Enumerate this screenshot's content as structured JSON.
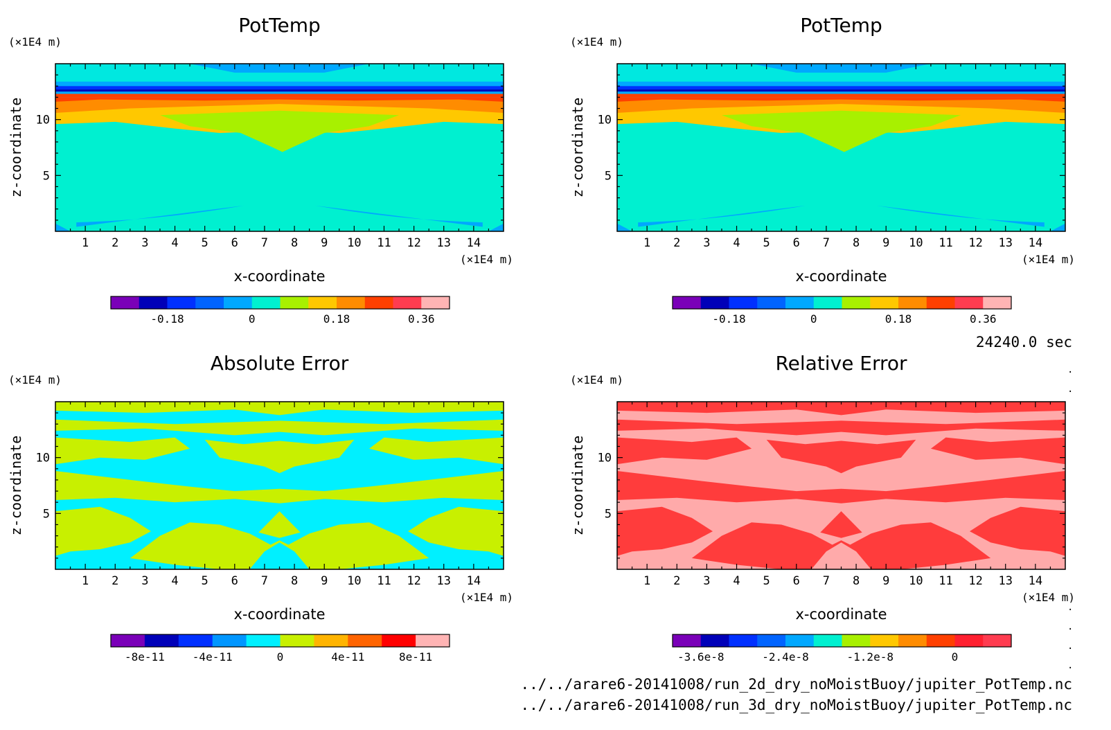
{
  "figure": {
    "time_label": "24240.0 sec",
    "files": [
      "../../arare6-20141008/run_2d_dry_noMoistBuoy/jupiter_PotTemp.nc",
      "../../arare6-20141008/run_3d_dry_noMoistBuoy/jupiter_PotTemp.nc"
    ]
  },
  "chart_data": [
    {
      "type": "heatmap",
      "title": "PotTemp",
      "xlabel": "x-coordinate",
      "ylabel": "z-coordinate",
      "x_unit": "(×1E4 m)",
      "y_unit": "(×1E4 m)",
      "xlim": [
        0,
        15
      ],
      "ylim": [
        0,
        15
      ],
      "xticks": [
        "1",
        "2",
        "3",
        "4",
        "5",
        "6",
        "7",
        "8",
        "9",
        "10",
        "11",
        "12",
        "13",
        "14"
      ],
      "yticks": [
        "5",
        "10"
      ],
      "colorbar": {
        "colors": [
          "#7a00b8",
          "#0000b8",
          "#0030ff",
          "#0064ff",
          "#00a8ff",
          "#00f0d0",
          "#a8f000",
          "#ffc800",
          "#ff8c00",
          "#ff4000",
          "#ff3c50",
          "#ffb4b4"
        ],
        "tick_labels": [
          "-0.18",
          "0",
          "0.18",
          "0.36"
        ],
        "tick_index": [
          2,
          5,
          8,
          11
        ]
      },
      "pattern": "potential"
    },
    {
      "type": "heatmap",
      "title": "PotTemp",
      "xlabel": "x-coordinate",
      "ylabel": "z-coordinate",
      "x_unit": "(×1E4 m)",
      "y_unit": "(×1E4 m)",
      "xlim": [
        0,
        15
      ],
      "ylim": [
        0,
        15
      ],
      "xticks": [
        "1",
        "2",
        "3",
        "4",
        "5",
        "6",
        "7",
        "8",
        "9",
        "10",
        "11",
        "12",
        "13",
        "14"
      ],
      "yticks": [
        "5",
        "10"
      ],
      "colorbar": {
        "colors": [
          "#7a00b8",
          "#0000b8",
          "#0030ff",
          "#0064ff",
          "#00a8ff",
          "#00f0d0",
          "#a8f000",
          "#ffc800",
          "#ff8c00",
          "#ff4000",
          "#ff3c50",
          "#ffb4b4"
        ],
        "tick_labels": [
          "-0.18",
          "0",
          "0.18",
          "0.36"
        ],
        "tick_index": [
          2,
          5,
          8,
          11
        ]
      },
      "pattern": "potential"
    },
    {
      "type": "heatmap",
      "title": "Absolute Error",
      "xlabel": "x-coordinate",
      "ylabel": "z-coordinate",
      "x_unit": "(×1E4 m)",
      "y_unit": "(×1E4 m)",
      "xlim": [
        0,
        15
      ],
      "ylim": [
        0,
        15
      ],
      "xticks": [
        "1",
        "2",
        "3",
        "4",
        "5",
        "6",
        "7",
        "8",
        "9",
        "10",
        "11",
        "12",
        "13",
        "14"
      ],
      "yticks": [
        "5",
        "10"
      ],
      "colorbar": {
        "colors": [
          "#7a00b8",
          "#0000b8",
          "#0030ff",
          "#0096ff",
          "#00f0ff",
          "#c8f000",
          "#ffb400",
          "#ff6400",
          "#ff0000",
          "#ffb4b4"
        ],
        "tick_labels": [
          "-8e-11",
          "-4e-11",
          "0",
          "4e-11",
          "8e-11"
        ],
        "tick_index": [
          1,
          3,
          5,
          7,
          9
        ]
      },
      "pattern": "abs",
      "fill_colors": [
        "#00f0ff",
        "#c8f000"
      ]
    },
    {
      "type": "heatmap",
      "title": "Relative Error",
      "xlabel": "x-coordinate",
      "ylabel": "z-coordinate",
      "x_unit": "(×1E4 m)",
      "y_unit": "(×1E4 m)",
      "xlim": [
        0,
        15
      ],
      "ylim": [
        0,
        15
      ],
      "xticks": [
        "1",
        "2",
        "3",
        "4",
        "5",
        "6",
        "7",
        "8",
        "9",
        "10",
        "11",
        "12",
        "13",
        "14"
      ],
      "yticks": [
        "5",
        "10"
      ],
      "colorbar": {
        "colors": [
          "#7a00b8",
          "#0000b8",
          "#0030ff",
          "#0064ff",
          "#00a8ff",
          "#00f0d0",
          "#a8f000",
          "#ffc800",
          "#ff8c00",
          "#ff4000",
          "#ff2030",
          "#ff3c50"
        ],
        "tick_labels": [
          "-3.6e-8",
          "-2.4e-8",
          "-1.2e-8",
          "0"
        ],
        "tick_index": [
          1,
          4,
          7,
          10
        ]
      },
      "pattern": "rel",
      "fill_colors": [
        "#ffaaaa",
        "#ff3c3c"
      ]
    }
  ]
}
